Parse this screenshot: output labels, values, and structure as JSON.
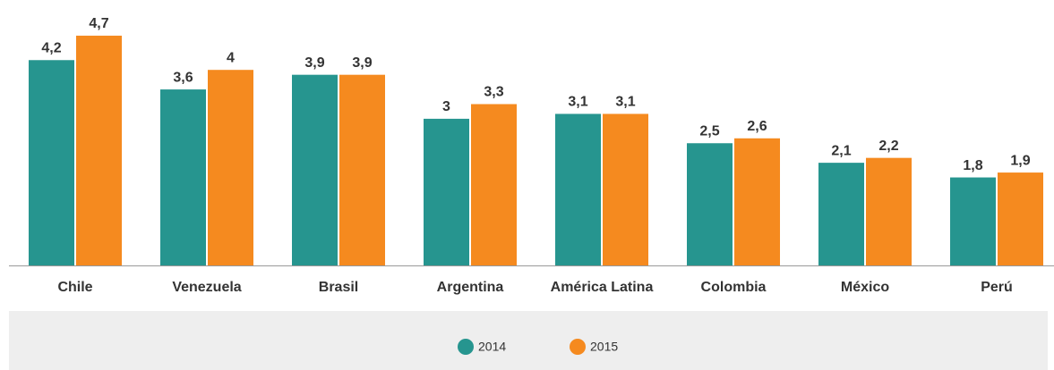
{
  "chart_data": {
    "type": "bar",
    "categories": [
      "Chile",
      "Venezuela",
      "Brasil",
      "Argentina",
      "América Latina",
      "Colombia",
      "México",
      "Perú"
    ],
    "series": [
      {
        "name": "2014",
        "color": "#26958f",
        "values": [
          4.2,
          3.6,
          3.9,
          3,
          3.1,
          2.5,
          2.1,
          1.8
        ],
        "value_labels": [
          "4,2",
          "3,6",
          "3,9",
          "3",
          "3,1",
          "2,5",
          "2,1",
          "1,8"
        ]
      },
      {
        "name": "2015",
        "color": "#f58a1f",
        "values": [
          4.7,
          4,
          3.9,
          3.3,
          3.1,
          2.6,
          2.2,
          1.9
        ],
        "value_labels": [
          "4,7",
          "4",
          "3,9",
          "3,3",
          "3,1",
          "2,6",
          "2,2",
          "1,9"
        ]
      }
    ]
  }
}
